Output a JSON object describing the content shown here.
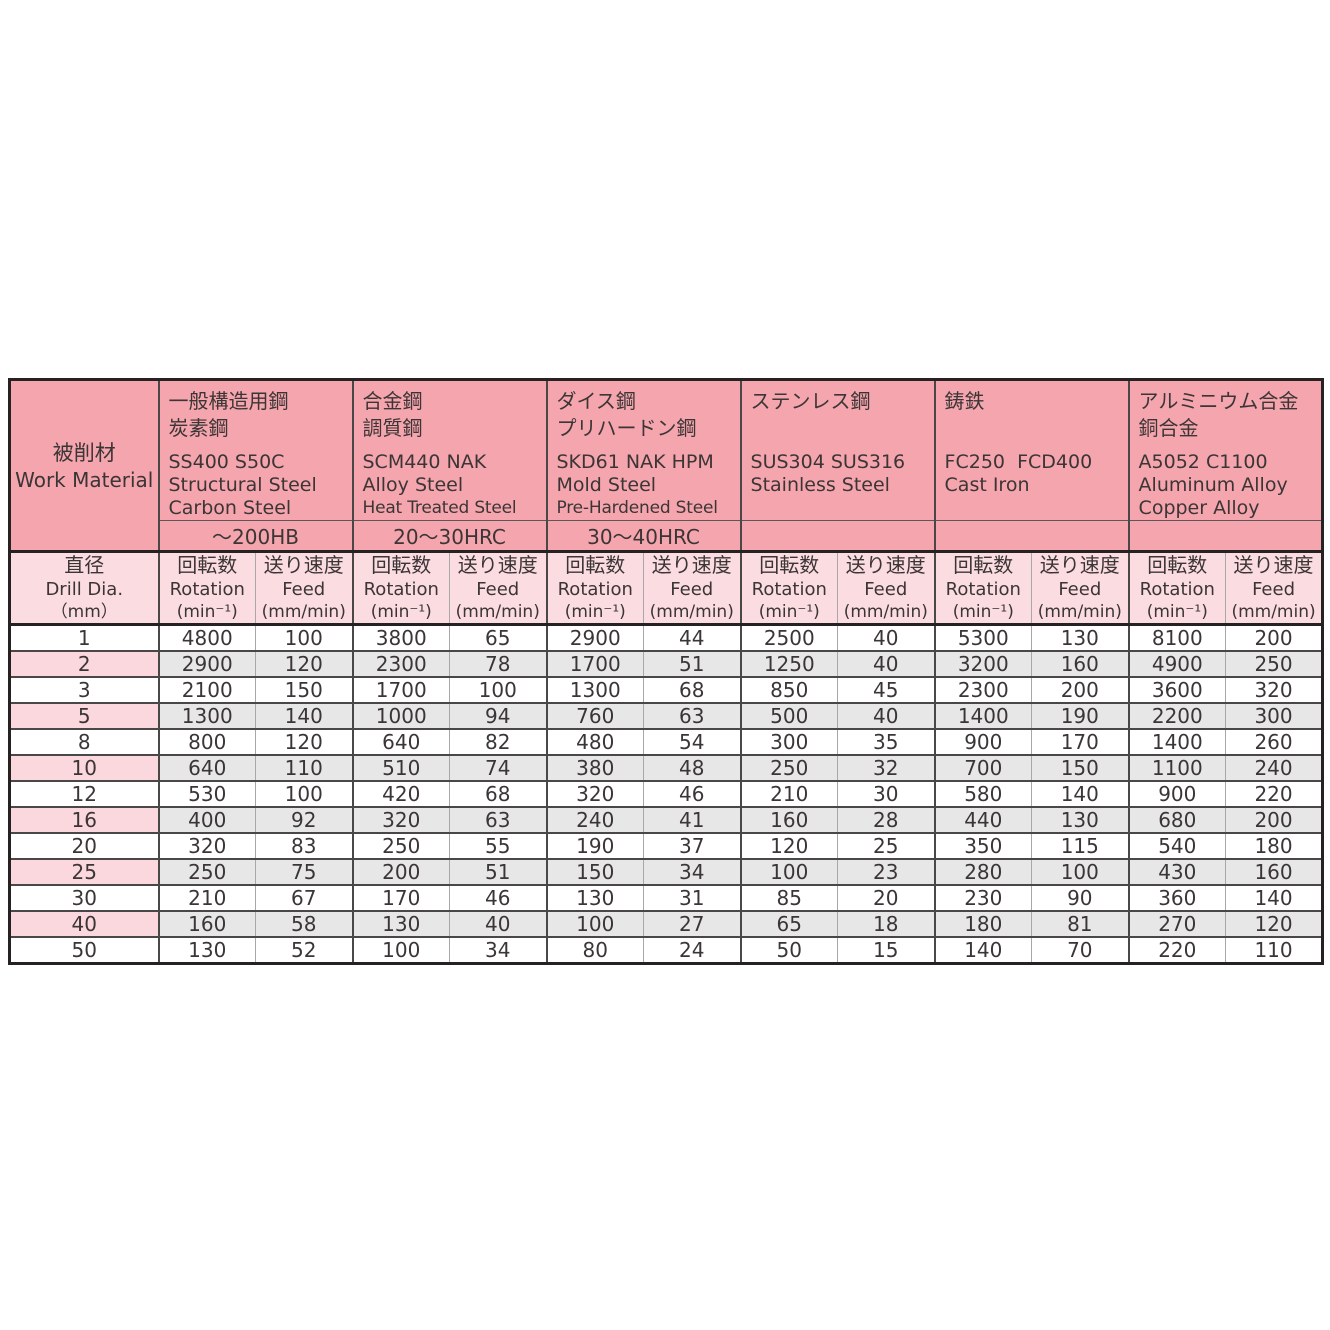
{
  "table": {
    "work_material": {
      "jp": "被削材",
      "en": "Work Material"
    },
    "materials": [
      {
        "jp": [
          "一般構造用鋼",
          "炭素鋼"
        ],
        "codes": "SS400 S50C",
        "en": [
          "Structural Steel",
          "Carbon Steel"
        ],
        "hardness": "～200HB"
      },
      {
        "jp": [
          "合金鋼",
          "調質鋼"
        ],
        "codes": "SCM440 NAK",
        "en": [
          "Alloy Steel",
          "Heat Treated Steel"
        ],
        "hardness": "20～30HRC"
      },
      {
        "jp": [
          "ダイス鋼",
          "プリハードン鋼"
        ],
        "codes": "SKD61 NAK HPM",
        "en": [
          "Mold Steel",
          "Pre-Hardened Steel"
        ],
        "hardness": "30～40HRC"
      },
      {
        "jp": [
          "ステンレス鋼"
        ],
        "codes": "SUS304 SUS316",
        "en": [
          "Stainless Steel"
        ],
        "hardness": ""
      },
      {
        "jp": [
          "鋳鉄"
        ],
        "codes": "FC250  FCD400",
        "en": [
          "Cast Iron"
        ],
        "hardness": ""
      },
      {
        "jp": [
          "アルミニウム合金",
          "銅合金"
        ],
        "codes": "A5052 C1100",
        "en": [
          "Aluminum Alloy",
          "Copper Alloy"
        ],
        "hardness": ""
      }
    ],
    "dia_header": {
      "jp": "直径",
      "en": "Drill Dia.",
      "unit": "（mm）"
    },
    "rotation_header": {
      "jp": "回転数",
      "en": "Rotation",
      "unit": "(min⁻¹)"
    },
    "feed_header": {
      "jp": "送り速度",
      "en": "Feed",
      "unit": "(mm/min)"
    },
    "rows": [
      {
        "dia": "1",
        "values": [
          "4800",
          "100",
          "3800",
          "65",
          "2900",
          "44",
          "2500",
          "40",
          "5300",
          "130",
          "8100",
          "200"
        ]
      },
      {
        "dia": "2",
        "values": [
          "2900",
          "120",
          "2300",
          "78",
          "1700",
          "51",
          "1250",
          "40",
          "3200",
          "160",
          "4900",
          "250"
        ]
      },
      {
        "dia": "3",
        "values": [
          "2100",
          "150",
          "1700",
          "100",
          "1300",
          "68",
          "850",
          "45",
          "2300",
          "200",
          "3600",
          "320"
        ]
      },
      {
        "dia": "5",
        "values": [
          "1300",
          "140",
          "1000",
          "94",
          "760",
          "63",
          "500",
          "40",
          "1400",
          "190",
          "2200",
          "300"
        ]
      },
      {
        "dia": "8",
        "values": [
          "800",
          "120",
          "640",
          "82",
          "480",
          "54",
          "300",
          "35",
          "900",
          "170",
          "1400",
          "260"
        ]
      },
      {
        "dia": "10",
        "values": [
          "640",
          "110",
          "510",
          "74",
          "380",
          "48",
          "250",
          "32",
          "700",
          "150",
          "1100",
          "240"
        ]
      },
      {
        "dia": "12",
        "values": [
          "530",
          "100",
          "420",
          "68",
          "320",
          "46",
          "210",
          "30",
          "580",
          "140",
          "900",
          "220"
        ]
      },
      {
        "dia": "16",
        "values": [
          "400",
          "92",
          "320",
          "63",
          "240",
          "41",
          "160",
          "28",
          "440",
          "130",
          "680",
          "200"
        ]
      },
      {
        "dia": "20",
        "values": [
          "320",
          "83",
          "250",
          "55",
          "190",
          "37",
          "120",
          "25",
          "350",
          "115",
          "540",
          "180"
        ]
      },
      {
        "dia": "25",
        "values": [
          "250",
          "75",
          "200",
          "51",
          "150",
          "34",
          "100",
          "23",
          "280",
          "100",
          "430",
          "160"
        ]
      },
      {
        "dia": "30",
        "values": [
          "210",
          "67",
          "170",
          "46",
          "130",
          "31",
          "85",
          "20",
          "230",
          "90",
          "360",
          "140"
        ]
      },
      {
        "dia": "40",
        "values": [
          "160",
          "58",
          "130",
          "40",
          "100",
          "27",
          "65",
          "18",
          "180",
          "81",
          "270",
          "120"
        ]
      },
      {
        "dia": "50",
        "values": [
          "130",
          "52",
          "100",
          "34",
          "80",
          "24",
          "50",
          "15",
          "140",
          "70",
          "220",
          "110"
        ]
      }
    ],
    "colors": {
      "header_pink": "#f5a5ad",
      "subheader_pink": "#fbdce1",
      "shaded_row_pink": "#fbd8dd",
      "shaded_row_gray": "#e7e7e8",
      "border_dark": "#262222",
      "border_light": "#a8a8a8",
      "text": "#3b3536"
    }
  }
}
